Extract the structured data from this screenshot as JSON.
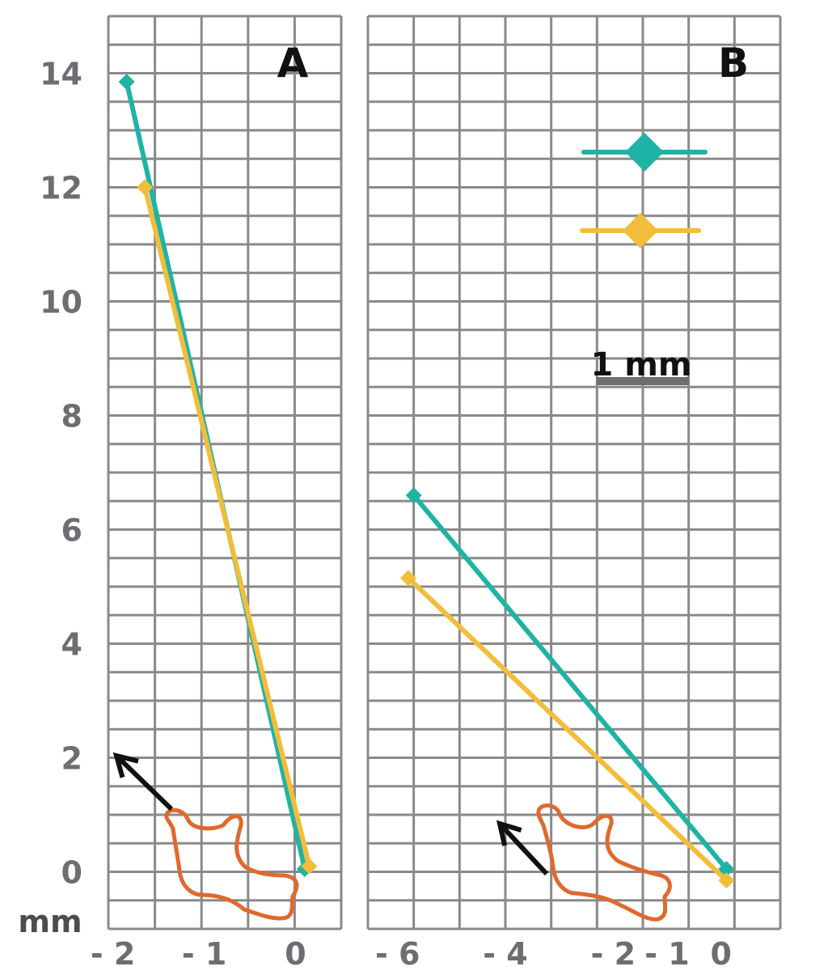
{
  "chart_data": [
    {
      "type": "line",
      "panel_label": "A",
      "ylabel": "mm",
      "xlim": [
        -2.05,
        0.5
      ],
      "ylim": [
        -1,
        15
      ],
      "xticks": [
        -2,
        -1,
        0
      ],
      "xtick_labels": [
        "- 2",
        "- 1",
        "0"
      ],
      "yticks": [
        0,
        2,
        4,
        6,
        8,
        10,
        12,
        14
      ],
      "ytick_labels": [
        "0",
        "2",
        "4",
        "6",
        "8",
        "10",
        "12",
        "14"
      ],
      "grid": true,
      "series": [
        {
          "color": "#1fb3a5",
          "x": [
            -1.85,
            0.1
          ],
          "y": [
            13.85,
            0.05
          ]
        },
        {
          "color": "#f2bd3a",
          "x": [
            -1.65,
            0.15
          ],
          "y": [
            12.0,
            0.1
          ]
        }
      ]
    },
    {
      "type": "line",
      "panel_label": "B",
      "xlim": [
        -6.55,
        1.1
      ],
      "ylim": [
        -1,
        15
      ],
      "xticks": [
        -6,
        -4,
        -2,
        -1,
        0
      ],
      "xtick_labels": [
        "- 6",
        "- 4",
        "- 2",
        "- 1",
        "0"
      ],
      "grid": true,
      "scale_bar_label": "1 mm",
      "series": [
        {
          "color": "#1fb3a5",
          "x": [
            -5.7,
            0.1
          ],
          "y": [
            6.6,
            0.05
          ]
        },
        {
          "color": "#f2bd3a",
          "x": [
            -5.8,
            0.1
          ],
          "y": [
            5.15,
            -0.15
          ]
        }
      ]
    }
  ],
  "colors": {
    "grid": "#8a8a8a",
    "tick_text": "#6d6e71",
    "outline": "#e0692e",
    "arrow": "#111111"
  },
  "icons": [
    "direction-arrow-icon",
    "specimen-outline-icon"
  ]
}
